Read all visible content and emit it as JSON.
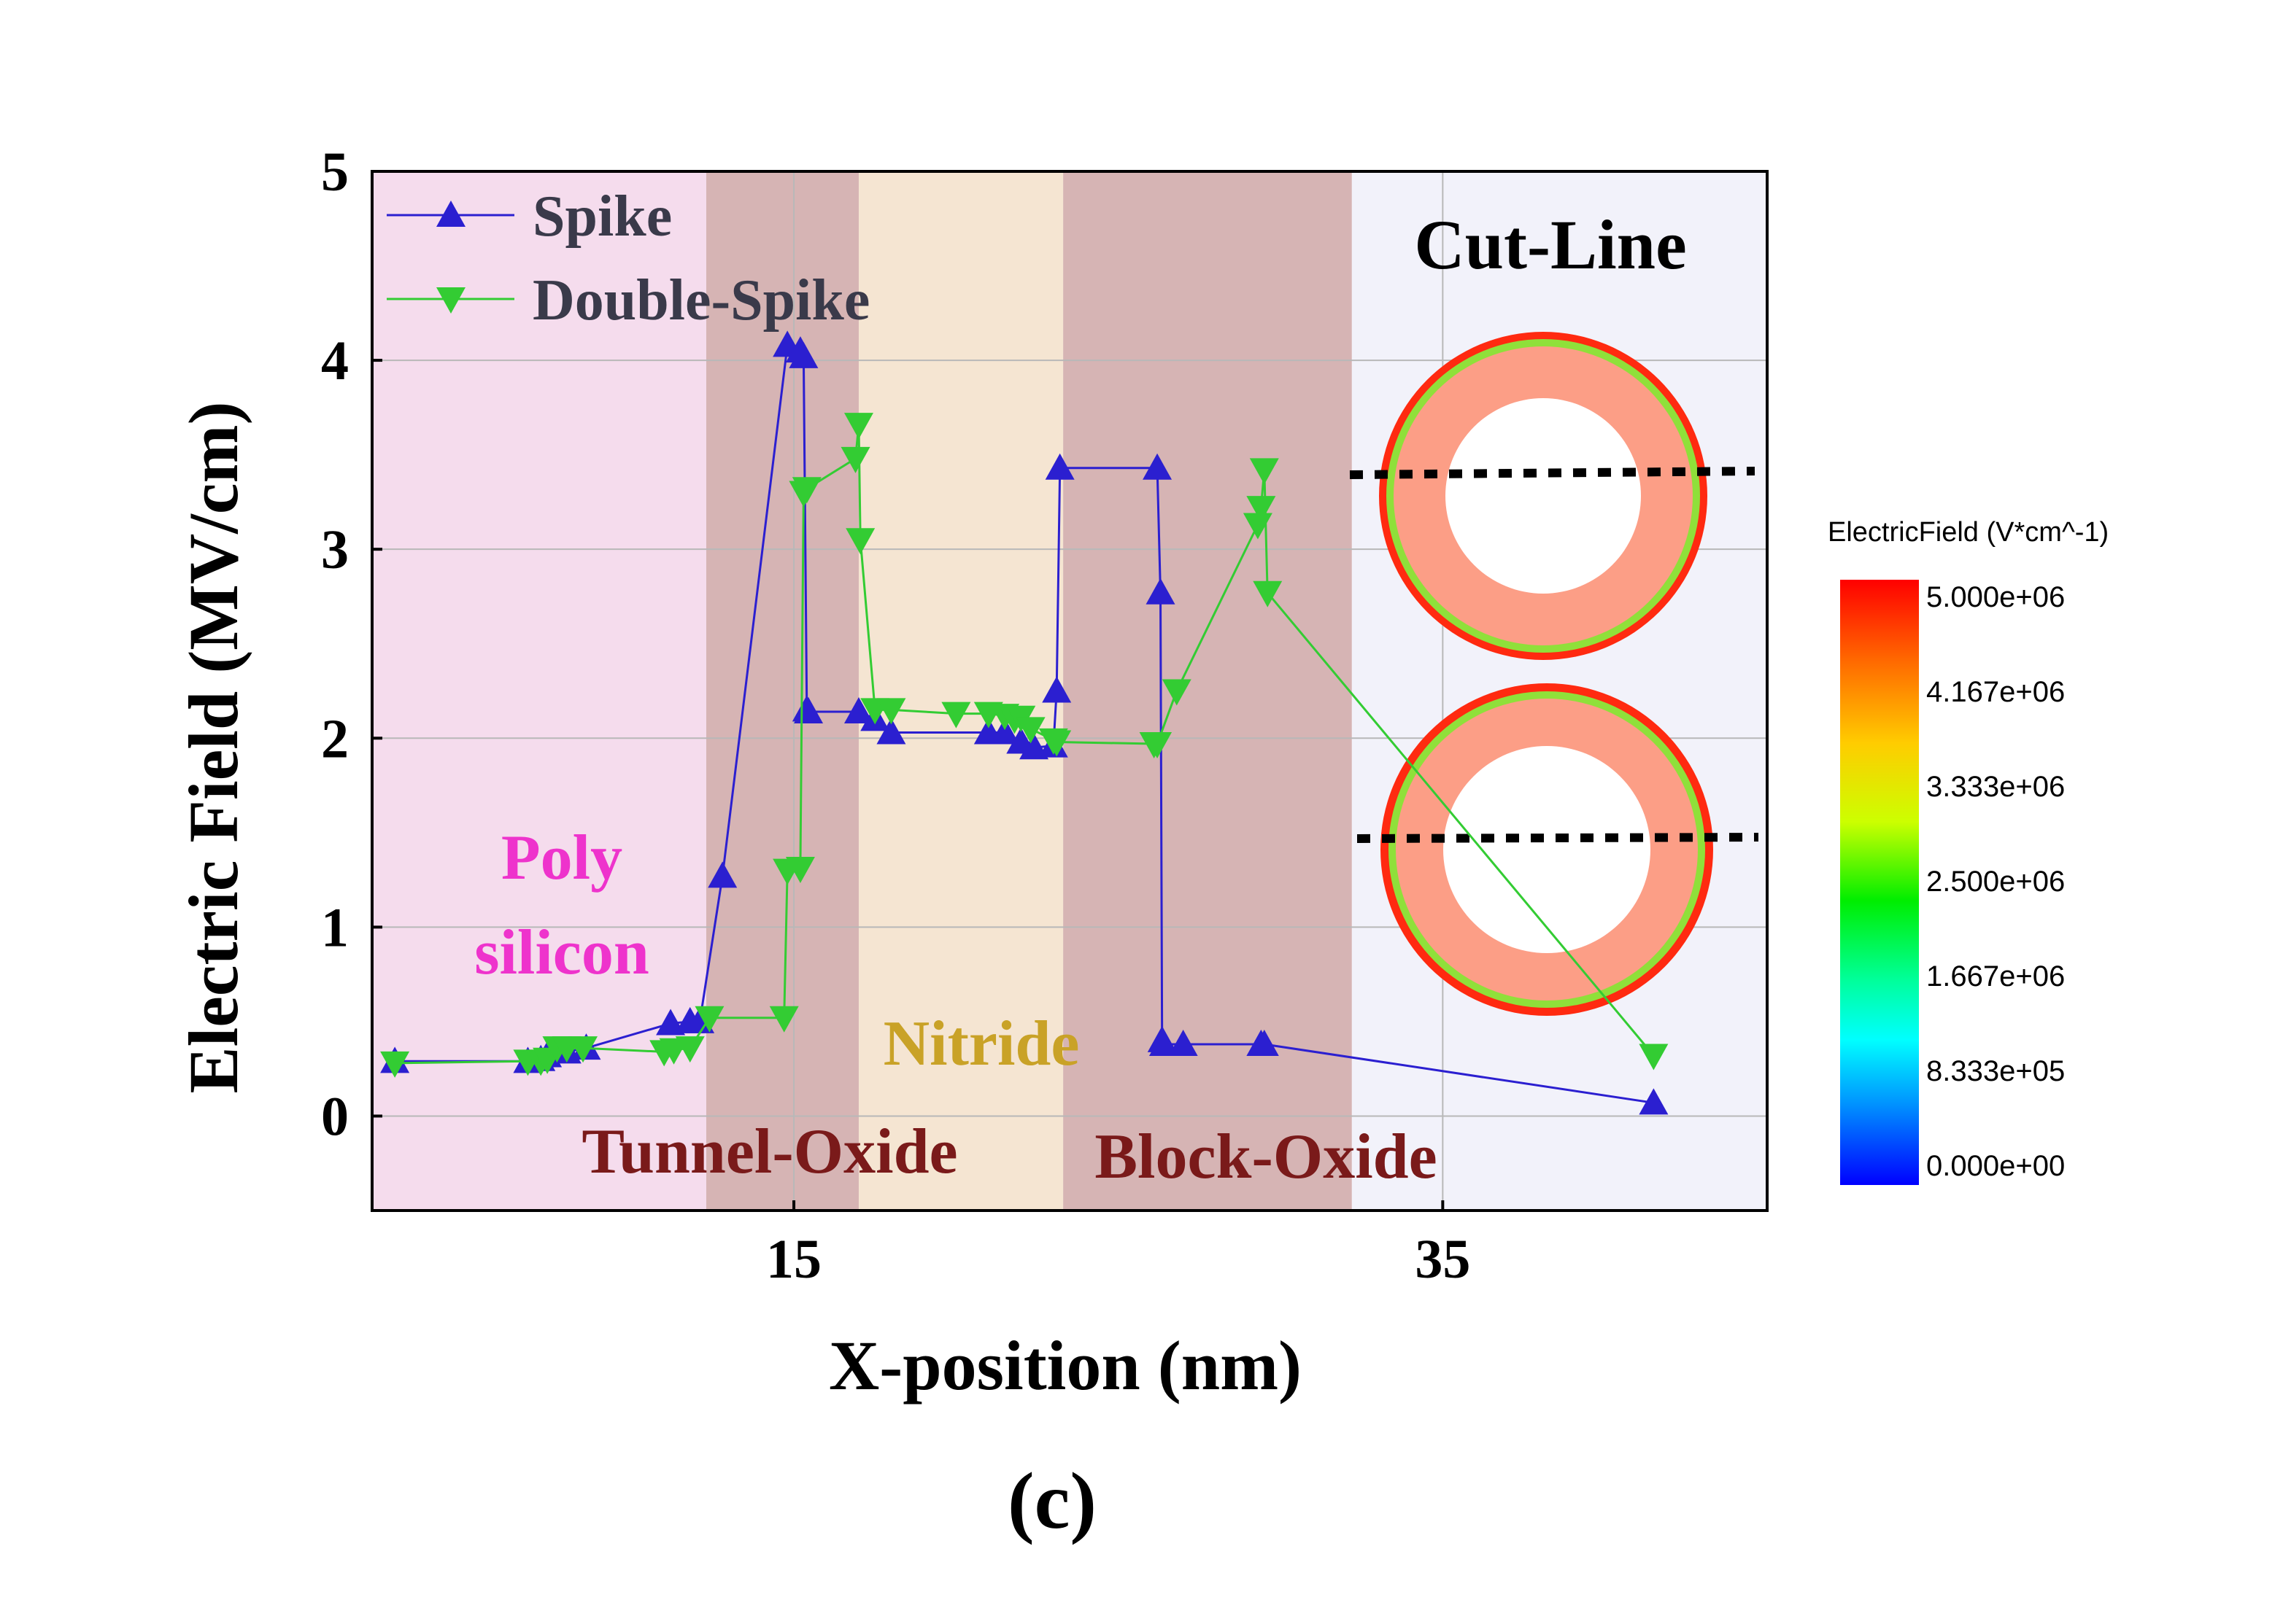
{
  "chart_data": {
    "type": "line",
    "xlabel": "X-position (nm)",
    "ylabel": "Electric Field (MV/cm)",
    "caption": "(c)",
    "xlim": [
      2,
      45
    ],
    "ylim": [
      -0.5,
      5
    ],
    "xticks": [
      15,
      35
    ],
    "yticks": [
      0,
      1,
      2,
      3,
      4,
      5
    ],
    "grid": true,
    "legend_position": "top-left",
    "regions": [
      {
        "label_lines": [
          "Poly",
          "silicon"
        ],
        "x_start": 2,
        "x_end": 12.3,
        "color": "#f5dced",
        "label_color": "#ee33cc"
      },
      {
        "label_lines": [
          "Tunnel-Oxide"
        ],
        "x_start": 12.3,
        "x_end": 17,
        "color": "#d6b4b4",
        "label_color": "#7a1a1a"
      },
      {
        "label_lines": [
          "Nitride"
        ],
        "x_start": 17,
        "x_end": 23.3,
        "color": "#f5e5d2",
        "label_color": "#c9a227"
      },
      {
        "label_lines": [
          "Block-Oxide"
        ],
        "x_start": 23.3,
        "x_end": 32.2,
        "color": "#d6b4b4",
        "label_color": "#7a1a1a"
      },
      {
        "label_lines": [],
        "x_start": 32.2,
        "x_end": 45,
        "color": "#f2f2fa",
        "label_color": "#000000"
      }
    ],
    "series": [
      {
        "name": "Spike",
        "color": "#2b1fd0",
        "marker": "triangle-up",
        "x": [
          2.7,
          6.8,
          7.2,
          7.4,
          8.0,
          8.6,
          11.2,
          11.8,
          12.1,
          12.8,
          14.8,
          15.2,
          15.3,
          15.4,
          15.45,
          17.0,
          17.5,
          18.0,
          21.0,
          21.5,
          22.0,
          22.4,
          23.0,
          23.1,
          23.2,
          26.2,
          26.3,
          26.35,
          26.4,
          27.0,
          29.4,
          29.5,
          41.5
        ],
        "y": [
          0.29,
          0.29,
          0.3,
          0.32,
          0.34,
          0.36,
          0.49,
          0.5,
          0.5,
          1.27,
          4.08,
          4.05,
          4.02,
          2.15,
          2.14,
          2.14,
          2.1,
          2.03,
          2.03,
          2.03,
          1.98,
          1.95,
          1.96,
          2.25,
          3.43,
          3.43,
          2.77,
          0.4,
          0.38,
          0.38,
          0.38,
          0.38,
          0.07
        ]
      },
      {
        "name": "Double-Spike",
        "color": "#33cc33",
        "marker": "triangle-down",
        "x": [
          2.7,
          6.8,
          7.2,
          7.4,
          7.7,
          8.0,
          8.5,
          11.0,
          11.3,
          11.8,
          12.4,
          14.7,
          14.8,
          15.2,
          15.3,
          15.4,
          16.9,
          17.0,
          17.05,
          17.5,
          18.0,
          20.0,
          21.0,
          21.5,
          21.8,
          22.0,
          22.3,
          23.0,
          23.1,
          26.1,
          26.2,
          26.8,
          29.3,
          29.4,
          29.5,
          29.6,
          41.5
        ],
        "y": [
          0.28,
          0.29,
          0.29,
          0.3,
          0.36,
          0.36,
          0.36,
          0.34,
          0.35,
          0.36,
          0.52,
          0.52,
          1.3,
          1.31,
          3.3,
          3.32,
          3.48,
          3.66,
          3.05,
          2.15,
          2.15,
          2.13,
          2.13,
          2.12,
          2.1,
          2.11,
          2.05,
          1.99,
          1.98,
          1.97,
          1.97,
          2.25,
          3.13,
          3.22,
          3.42,
          2.77,
          0.32
        ]
      }
    ]
  },
  "inset": {
    "title": "Cut-Line"
  },
  "colorbar": {
    "title": "ElectricField (V*cm^-1)",
    "ticks": [
      "5.000e+06",
      "4.167e+06",
      "3.333e+06",
      "2.500e+06",
      "1.667e+06",
      "8.333e+05",
      "0.000e+00"
    ]
  }
}
